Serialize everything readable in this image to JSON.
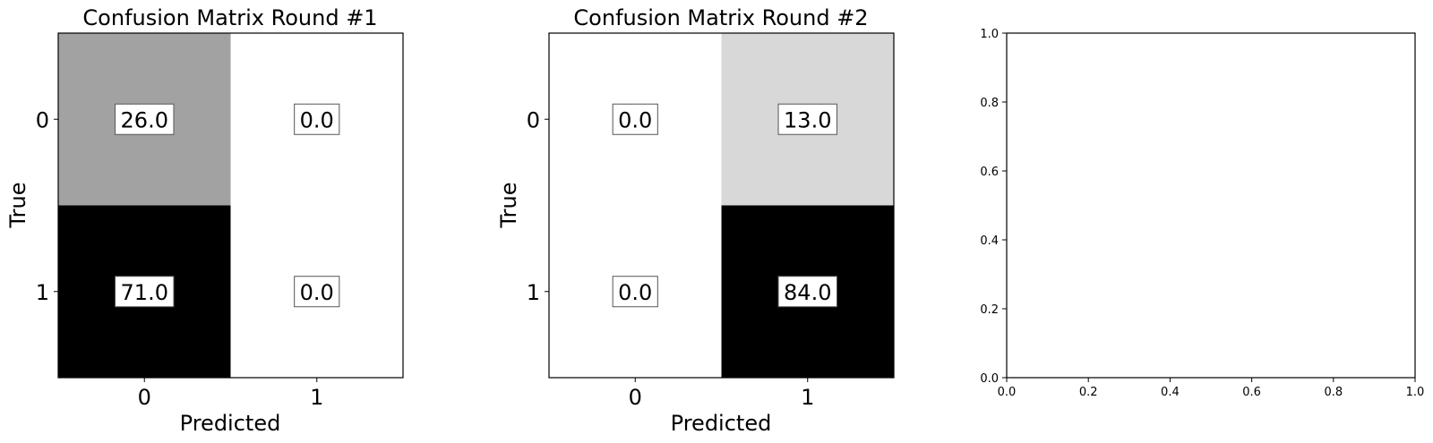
{
  "chart_data": [
    {
      "type": "heatmap",
      "title": "Confusion Matrix Round #1",
      "xlabel": "Predicted",
      "ylabel": "True",
      "x_categories": [
        "0",
        "1"
      ],
      "y_categories": [
        "0",
        "1"
      ],
      "values": [
        [
          26.0,
          0.0
        ],
        [
          71.0,
          0.0
        ]
      ],
      "value_labels": [
        [
          "26.0",
          "0.0"
        ],
        [
          "71.0",
          "0.0"
        ]
      ],
      "colormap": "grayscale (white = low, black = high)"
    },
    {
      "type": "heatmap",
      "title": "Confusion Matrix Round #2",
      "xlabel": "Predicted",
      "ylabel": "True",
      "x_categories": [
        "0",
        "1"
      ],
      "y_categories": [
        "0",
        "1"
      ],
      "values": [
        [
          0.0,
          13.0
        ],
        [
          0.0,
          84.0
        ]
      ],
      "value_labels": [
        [
          "0.0",
          "13.0"
        ],
        [
          "0.0",
          "84.0"
        ]
      ],
      "colormap": "grayscale (white = low, black = high)"
    },
    {
      "type": "scatter",
      "title": "",
      "xlabel": "",
      "ylabel": "",
      "series": [],
      "xlim": [
        0.0,
        1.0
      ],
      "ylim": [
        0.0,
        1.0
      ],
      "xticks": [
        "0.0",
        "0.2",
        "0.4",
        "0.6",
        "0.8",
        "1.0"
      ],
      "yticks": [
        "0.0",
        "0.2",
        "0.4",
        "0.6",
        "0.8",
        "1.0"
      ]
    }
  ]
}
